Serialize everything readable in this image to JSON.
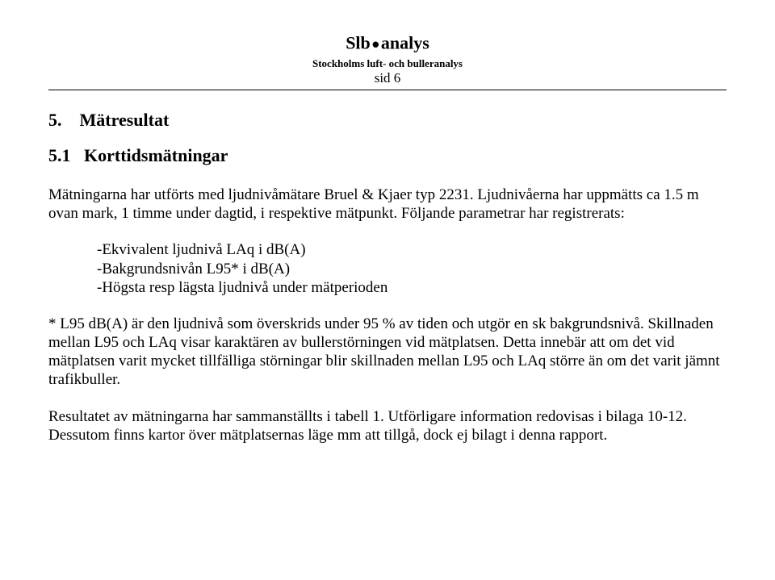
{
  "header": {
    "title_left": "Slb",
    "title_right": "analys",
    "subtitle": "Stockholms luft- och bulleranalys",
    "page": "sid 6"
  },
  "section": {
    "number": "5.",
    "title": "Mätresultat"
  },
  "subsection": {
    "number": "5.1",
    "title": "Korttidsmätningar"
  },
  "para1": "Mätningarna har utförts med ljudnivåmätare Bruel & Kjaer typ 2231. Ljudnivåerna har uppmätts ca 1.5 m ovan mark, 1 timme under dagtid, i respektive mätpunkt. Följande parametrar har registrerats:",
  "params": {
    "p1": "-Ekvivalent ljudnivå LAq i dB(A)",
    "p2": "-Bakgrundsnivån L95* i dB(A)",
    "p3": "-Högsta resp lägsta ljudnivå under mätperioden"
  },
  "para2": "* L95 dB(A) är den ljudnivå som överskrids under 95 % av tiden och utgör en sk bakgrundsnivå. Skillnaden mellan L95 och LAq visar karaktären av bullerstörningen vid mätplatsen. Detta innebär att om det vid mätplatsen varit mycket tillfälliga störningar blir skillnaden mellan L95 och LAq större än om det varit jämnt trafikbuller.",
  "para3": "Resultatet av mätningarna har sammanställts i tabell 1. Utförligare information redovisas i bilaga 10-12. Dessutom finns kartor över mätplatsernas läge mm att tillgå, dock ej bilagt i denna rapport."
}
